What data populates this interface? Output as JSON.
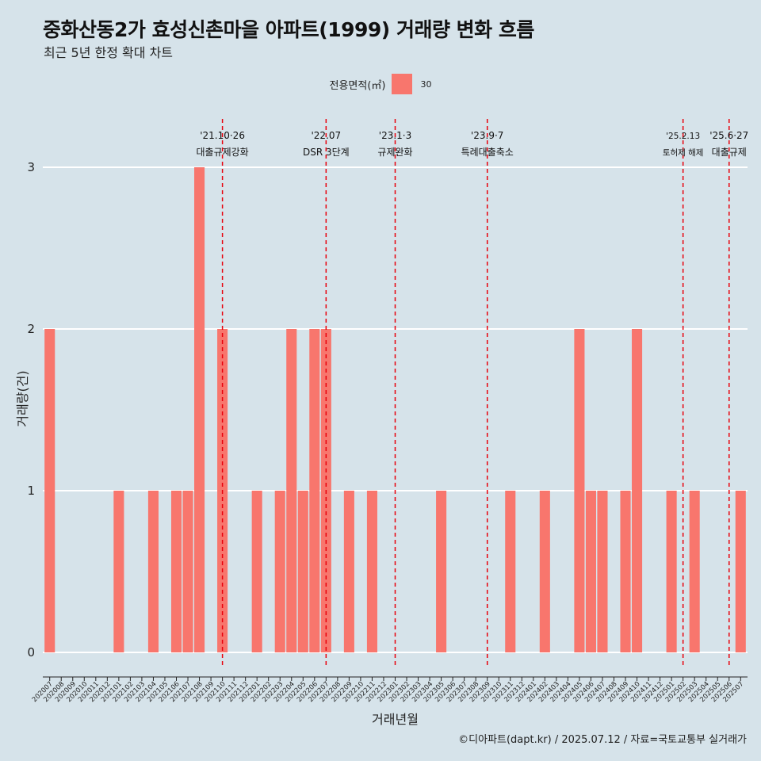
{
  "title": "중화산동2가 효성신촌마을 아파트(1999) 거래량 변화 흐름",
  "subtitle": "최근 5년 한정 확대 차트",
  "legend": {
    "title": "전용면적(㎡)",
    "key": "30",
    "color": "#f8766d"
  },
  "caption": "©디아파트(dapt.kr) / 2025.07.12 / 자료=국토교통부 실거래가",
  "chart_data": {
    "type": "bar",
    "xlabel": "거래년월",
    "ylabel": "거래량(건)",
    "ylim": [
      0,
      3
    ],
    "yticks": [
      0,
      1,
      2,
      3
    ],
    "grid": true,
    "legend_position": "top",
    "categories": [
      "202007",
      "202008",
      "202009",
      "202010",
      "202011",
      "202012",
      "202101",
      "202102",
      "202103",
      "202104",
      "202105",
      "202106",
      "202107",
      "202108",
      "202109",
      "202110",
      "202111",
      "202112",
      "202201",
      "202202",
      "202203",
      "202204",
      "202205",
      "202206",
      "202207",
      "202208",
      "202209",
      "202210",
      "202211",
      "202212",
      "202301",
      "202302",
      "202303",
      "202304",
      "202305",
      "202306",
      "202307",
      "202308",
      "202309",
      "202310",
      "202311",
      "202312",
      "202401",
      "202402",
      "202403",
      "202404",
      "202405",
      "202406",
      "202407",
      "202408",
      "202409",
      "202410",
      "202411",
      "202412",
      "202501",
      "202502",
      "202503",
      "202504",
      "202505",
      "202506",
      "202507"
    ],
    "series": [
      {
        "name": "30",
        "color": "#f8766d",
        "values": [
          2,
          0,
          0,
          0,
          0,
          0,
          1,
          0,
          0,
          1,
          0,
          1,
          1,
          3,
          0,
          2,
          0,
          0,
          1,
          0,
          1,
          2,
          1,
          2,
          2,
          0,
          1,
          0,
          1,
          0,
          0,
          0,
          0,
          0,
          1,
          0,
          0,
          0,
          0,
          0,
          1,
          0,
          0,
          1,
          0,
          0,
          2,
          1,
          1,
          0,
          1,
          2,
          0,
          0,
          1,
          0,
          1,
          0,
          0,
          0,
          1
        ]
      }
    ],
    "events": [
      {
        "date": "'21.10·26",
        "label": "대출규제강화",
        "x": "202110",
        "size": "normal"
      },
      {
        "date": "'22.07",
        "label": "DSR 3단계",
        "x": "202207",
        "size": "normal"
      },
      {
        "date": "'23.1·3",
        "label": "규제완화",
        "x": "202301",
        "size": "normal"
      },
      {
        "date": "'23.9·7",
        "label": "특례대출축소",
        "x": "202309",
        "size": "normal"
      },
      {
        "date": "'25.2.13",
        "label": "토허제 해제",
        "x": "202502",
        "size": "small"
      },
      {
        "date": "'25.6·27",
        "label": "대출규제",
        "x": "202506",
        "size": "normal"
      }
    ]
  }
}
